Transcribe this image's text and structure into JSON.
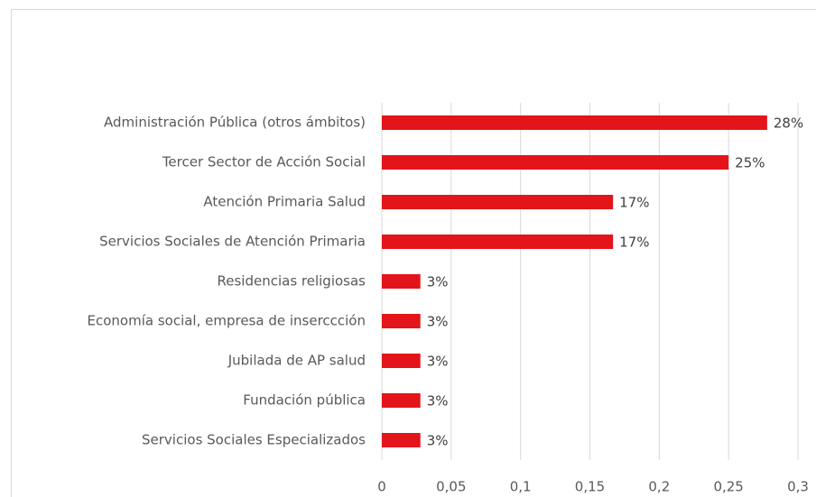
{
  "chart_data": {
    "type": "bar",
    "orientation": "horizontal",
    "categories": [
      "Administración Pública (otros ámbitos)",
      "Tercer Sector de Acción Social",
      "Atención Primaria Salud",
      "Servicios Sociales de Atención Primaria",
      "Residencias religiosas",
      "Economía social, empresa de inserccción",
      "Jubilada de AP salud",
      "Fundación pública",
      "Servicios Sociales Especializados"
    ],
    "values": [
      0.2778,
      0.25,
      0.1667,
      0.1667,
      0.0278,
      0.0278,
      0.0278,
      0.0278,
      0.0278
    ],
    "value_labels": [
      "28%",
      "25%",
      "17%",
      "17%",
      "3%",
      "3%",
      "3%",
      "3%",
      "3%"
    ],
    "color": "#e3151a",
    "xlim": [
      0,
      0.3
    ],
    "xticks": [
      0,
      {
        "value": 0.05,
        "label": "0,05"
      },
      {
        "value": 0.1,
        "label": "0,1"
      },
      {
        "value": 0.15,
        "label": "0,15"
      },
      {
        "value": 0.2,
        "label": "0,2"
      },
      {
        "value": 0.25,
        "label": "0,25"
      },
      {
        "value": 0.3,
        "label": "0,3"
      }
    ],
    "grid": true
  }
}
